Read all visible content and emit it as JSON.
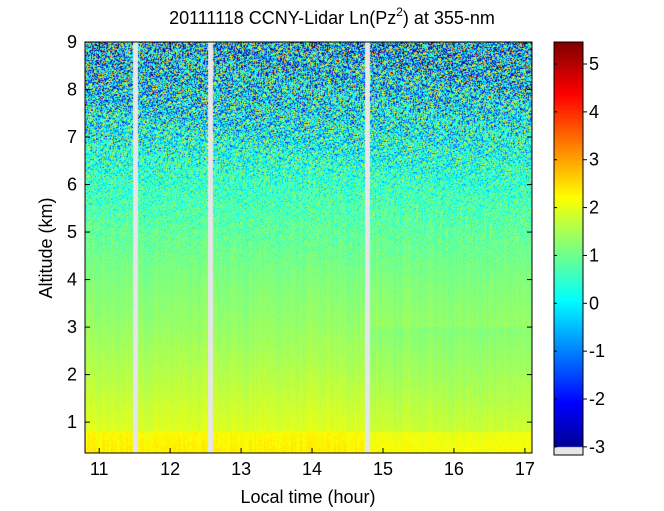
{
  "chart_data": {
    "type": "heatmap",
    "title": "20111118 CCNY-Lidar Ln(Pz",
    "title_superscript": "2",
    "title_suffix": ") at 355-nm",
    "xlabel": "Local time (hour)",
    "ylabel": "Altitude (km)",
    "xlim": [
      10.8,
      17.1
    ],
    "ylim": [
      0.35,
      9
    ],
    "xticks": [
      11,
      12,
      13,
      14,
      15,
      16,
      17
    ],
    "yticks": [
      1,
      2,
      3,
      4,
      5,
      6,
      7,
      8,
      9
    ],
    "colorbar": {
      "colormap": "jet",
      "range": [
        -3.17,
        5.46
      ],
      "ticks": [
        -3,
        -2,
        -1,
        0,
        1,
        2,
        3,
        4,
        5
      ],
      "position": "right"
    },
    "data_gaps_hours": [
      [
        11.48,
        11.55
      ],
      [
        12.53,
        12.6
      ],
      [
        14.75,
        14.82
      ]
    ],
    "value_profile": {
      "altitude_km": [
        0.35,
        1,
        2,
        3,
        4,
        5,
        6,
        7,
        8,
        9
      ],
      "mean_value": [
        2.1,
        1.9,
        1.6,
        1.35,
        1.15,
        0.9,
        0.55,
        0.25,
        0.0,
        -0.2
      ]
    },
    "grid": false
  }
}
